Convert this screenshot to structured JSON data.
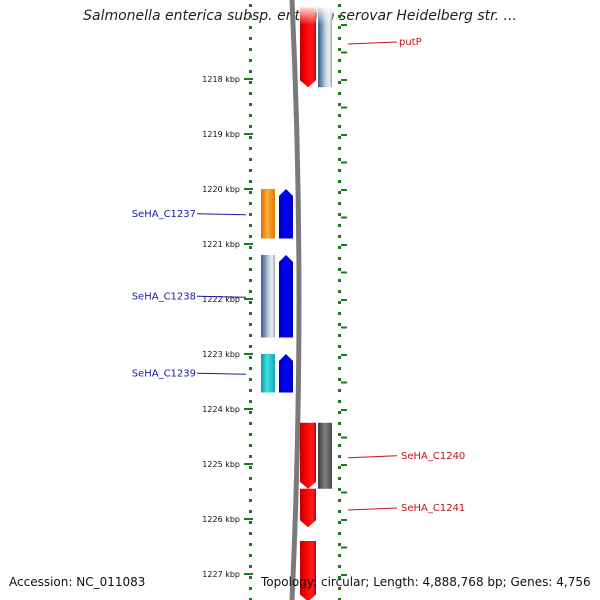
{
  "title": "Salmonella enterica subsp. enterica serovar Heidelberg str. ...",
  "footer": {
    "accession": "Accession: NC_011083",
    "topology": "Topology: circular; Length: 4,888,768 bp; Genes: 4,756"
  },
  "colors": {
    "tick": "#1c7a1c",
    "backbone": "#808080",
    "forward_label": "#1a1aa8",
    "reverse_label": "#c41414",
    "blue_gene": "#0000ff",
    "red_gene": "#ff0000",
    "orange_gene": "#f59a1a",
    "cyan_gene": "#22c2c8"
  },
  "scale_labels": [
    "1218 kbp",
    "1219 kbp",
    "1220 kbp",
    "1221 kbp",
    "1222 kbp",
    "1223 kbp",
    "1224 kbp",
    "1225 kbp",
    "1226 kbp",
    "1227 kbp"
  ],
  "genes": [
    {
      "name": "putP",
      "kbp_start": 1216.7,
      "kbp_end": 1218.15,
      "strand": "reverse",
      "color": "#ff0000",
      "faded_top": true
    },
    {
      "name": "",
      "kbp_start": 1216.7,
      "kbp_end": 1218.15,
      "strand": "reverse",
      "track": "outer",
      "color": "steel",
      "faded_top": true
    },
    {
      "name": "SeHA_C1237",
      "kbp_start": 1220.0,
      "kbp_end": 1220.9,
      "strand": "forward",
      "color": "#0000ff"
    },
    {
      "name": "",
      "kbp_start": 1220.0,
      "kbp_end": 1220.9,
      "strand": "forward",
      "track": "outer",
      "color": "#f59a1a"
    },
    {
      "name": "SeHA_C1238",
      "kbp_start": 1221.2,
      "kbp_end": 1222.7,
      "strand": "forward",
      "color": "#0000ff"
    },
    {
      "name": "",
      "kbp_start": 1221.2,
      "kbp_end": 1222.7,
      "strand": "forward",
      "track": "outer",
      "color": "steel"
    },
    {
      "name": "SeHA_C1239",
      "kbp_start": 1223.0,
      "kbp_end": 1223.7,
      "strand": "forward",
      "color": "#0000ff"
    },
    {
      "name": "",
      "kbp_start": 1223.0,
      "kbp_end": 1223.7,
      "strand": "forward",
      "track": "outer",
      "color": "#22c2c8"
    },
    {
      "name": "SeHA_C1240",
      "kbp_start": 1224.25,
      "kbp_end": 1225.45,
      "strand": "reverse",
      "color": "#ff0000"
    },
    {
      "name": "",
      "kbp_start": 1224.25,
      "kbp_end": 1225.45,
      "strand": "reverse",
      "track": "outer",
      "color": "gray"
    },
    {
      "name": "SeHA_C1241",
      "kbp_start": 1225.45,
      "kbp_end": 1226.15,
      "strand": "reverse",
      "color": "#ff0000"
    },
    {
      "name": "",
      "kbp_start": 1226.4,
      "kbp_end": 1227.5,
      "strand": "reverse",
      "color": "#ff0000"
    }
  ]
}
